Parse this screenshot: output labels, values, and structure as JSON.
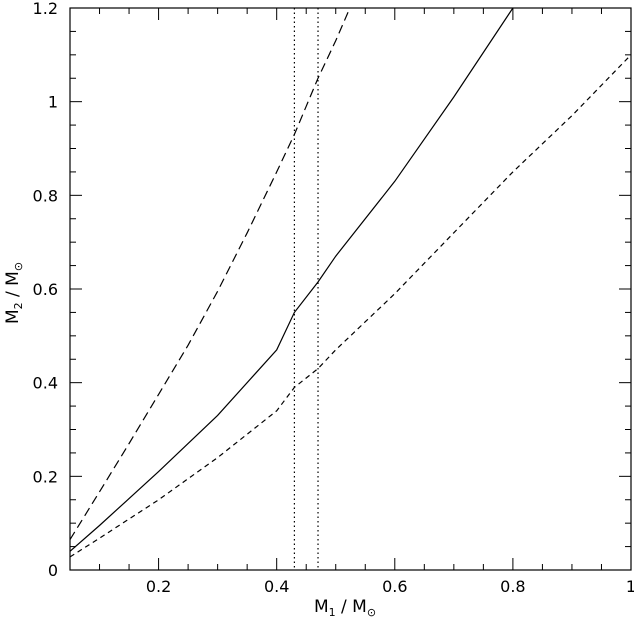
{
  "chart_data": {
    "type": "line",
    "title": "",
    "xlabel": {
      "main": "M",
      "sub": "1",
      "unit": "M",
      "unit_sub": "⊙",
      "sep": " / "
    },
    "ylabel": {
      "main": "M",
      "sub": "2",
      "unit": "M",
      "unit_sub": "⊙",
      "sep": " / "
    },
    "xlim": [
      0.05,
      1.0
    ],
    "ylim": [
      0,
      1.2
    ],
    "x_ticks": [
      0.2,
      0.4,
      0.6,
      0.8,
      1.0
    ],
    "x_tick_labels": [
      "0.2",
      "0.4",
      "0.6",
      "0.8",
      "1"
    ],
    "y_ticks": [
      0,
      0.2,
      0.4,
      0.6,
      0.8,
      1.0,
      1.2
    ],
    "y_tick_labels": [
      "0",
      "0.2",
      "0.4",
      "0.6",
      "0.8",
      "1",
      "1.2"
    ],
    "grid": false,
    "series": [
      {
        "style": "long-dash",
        "x": [
          0.05,
          0.1,
          0.15,
          0.2,
          0.25,
          0.3,
          0.35,
          0.4,
          0.43,
          0.45,
          0.47,
          0.5,
          0.524
        ],
        "y": [
          0.065,
          0.167,
          0.27,
          0.375,
          0.48,
          0.595,
          0.72,
          0.85,
          0.93,
          0.99,
          1.05,
          1.13,
          1.2
        ]
      },
      {
        "style": "solid",
        "x": [
          0.05,
          0.1,
          0.2,
          0.3,
          0.4,
          0.43,
          0.47,
          0.5,
          0.6,
          0.7,
          0.8
        ],
        "y": [
          0.04,
          0.095,
          0.21,
          0.33,
          0.47,
          0.55,
          0.615,
          0.67,
          0.83,
          1.01,
          1.2
        ]
      },
      {
        "style": "short-dash",
        "x": [
          0.05,
          0.1,
          0.2,
          0.3,
          0.4,
          0.43,
          0.47,
          0.5,
          0.6,
          0.7,
          0.8,
          0.9,
          1.0
        ],
        "y": [
          0.028,
          0.068,
          0.15,
          0.24,
          0.34,
          0.39,
          0.43,
          0.47,
          0.59,
          0.72,
          0.85,
          0.97,
          1.1
        ]
      }
    ],
    "vertical_lines": [
      {
        "x": 0.43,
        "style": "dotted"
      },
      {
        "x": 0.47,
        "style": "dotted"
      }
    ]
  }
}
